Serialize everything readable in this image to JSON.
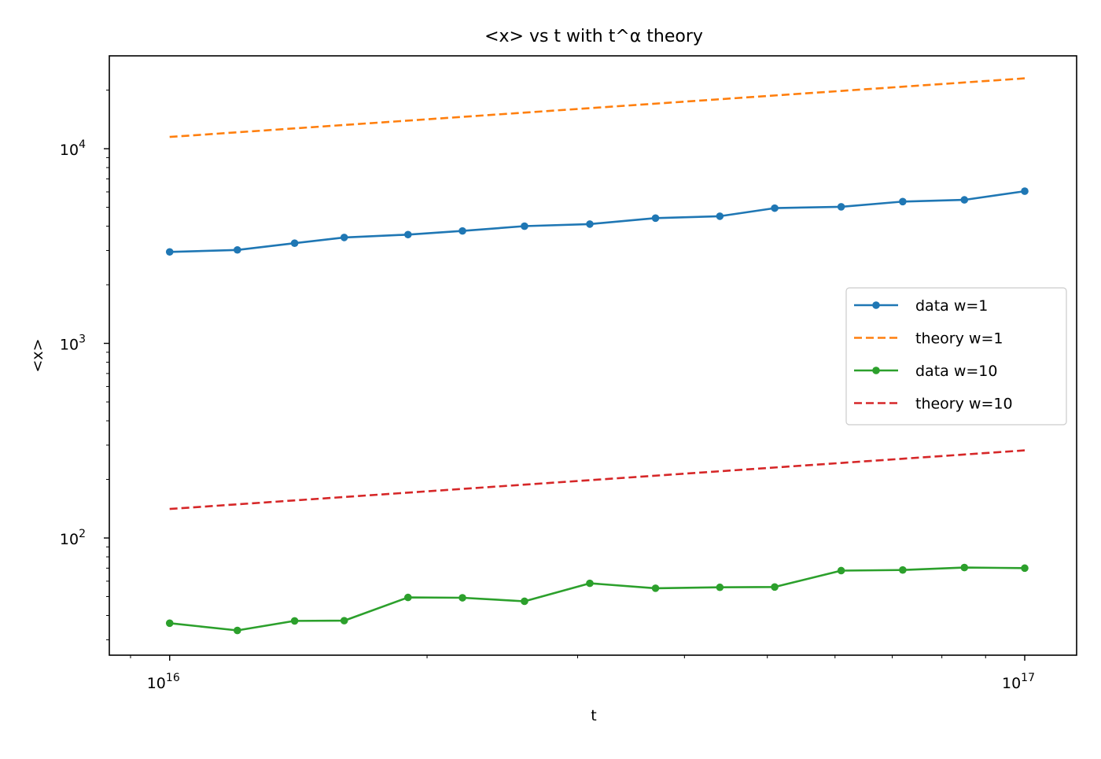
{
  "chart_data": {
    "type": "line",
    "title": "<x> vs t with t^α theory",
    "xlabel": "t",
    "ylabel": "<x>",
    "xscale": "log",
    "yscale": "log",
    "xlim": [
      8500000000000000.0,
      1.15e+17
    ],
    "ylim": [
      25,
      30000
    ],
    "x_ticks": [
      {
        "value": 1e+16,
        "base": "10",
        "exp": "16"
      },
      {
        "value": 1e+17,
        "base": "10",
        "exp": "17"
      }
    ],
    "y_ticks": [
      {
        "value": 100,
        "base": "10",
        "exp": "2"
      },
      {
        "value": 1000,
        "base": "10",
        "exp": "3"
      },
      {
        "value": 10000,
        "base": "10",
        "exp": "4"
      }
    ],
    "grid": false,
    "legend_position": "center-right",
    "x": [
      1e+16,
      1.2e+16,
      1.4e+16,
      1.6e+16,
      1.9e+16,
      2.2e+16,
      2.6e+16,
      3.1e+16,
      3.7e+16,
      4.4e+16,
      5.1e+16,
      6.1e+16,
      7.2e+16,
      8.5e+16,
      1e+17
    ],
    "series": [
      {
        "name": "data w=1",
        "color": "#1f77b4",
        "style": "solid-marker",
        "values": [
          2950,
          3020,
          3270,
          3500,
          3620,
          3780,
          4000,
          4100,
          4400,
          4500,
          4950,
          5030,
          5350,
          5460,
          6050
        ]
      },
      {
        "name": "theory w=1",
        "color": "#ff7f0e",
        "style": "dashed",
        "x": [
          1e+16,
          1e+17
        ],
        "values": [
          11500,
          23000
        ]
      },
      {
        "name": "data w=10",
        "color": "#2ca02c",
        "style": "solid-marker",
        "values": [
          36.5,
          33.5,
          37.5,
          37.6,
          49.5,
          49.3,
          47.3,
          58.5,
          55.2,
          55.8,
          56,
          68,
          68.5,
          70.5,
          70
        ]
      },
      {
        "name": "theory w=10",
        "color": "#d62728",
        "style": "dashed",
        "x": [
          1e+16,
          1e+17
        ],
        "values": [
          141,
          282
        ]
      }
    ]
  }
}
